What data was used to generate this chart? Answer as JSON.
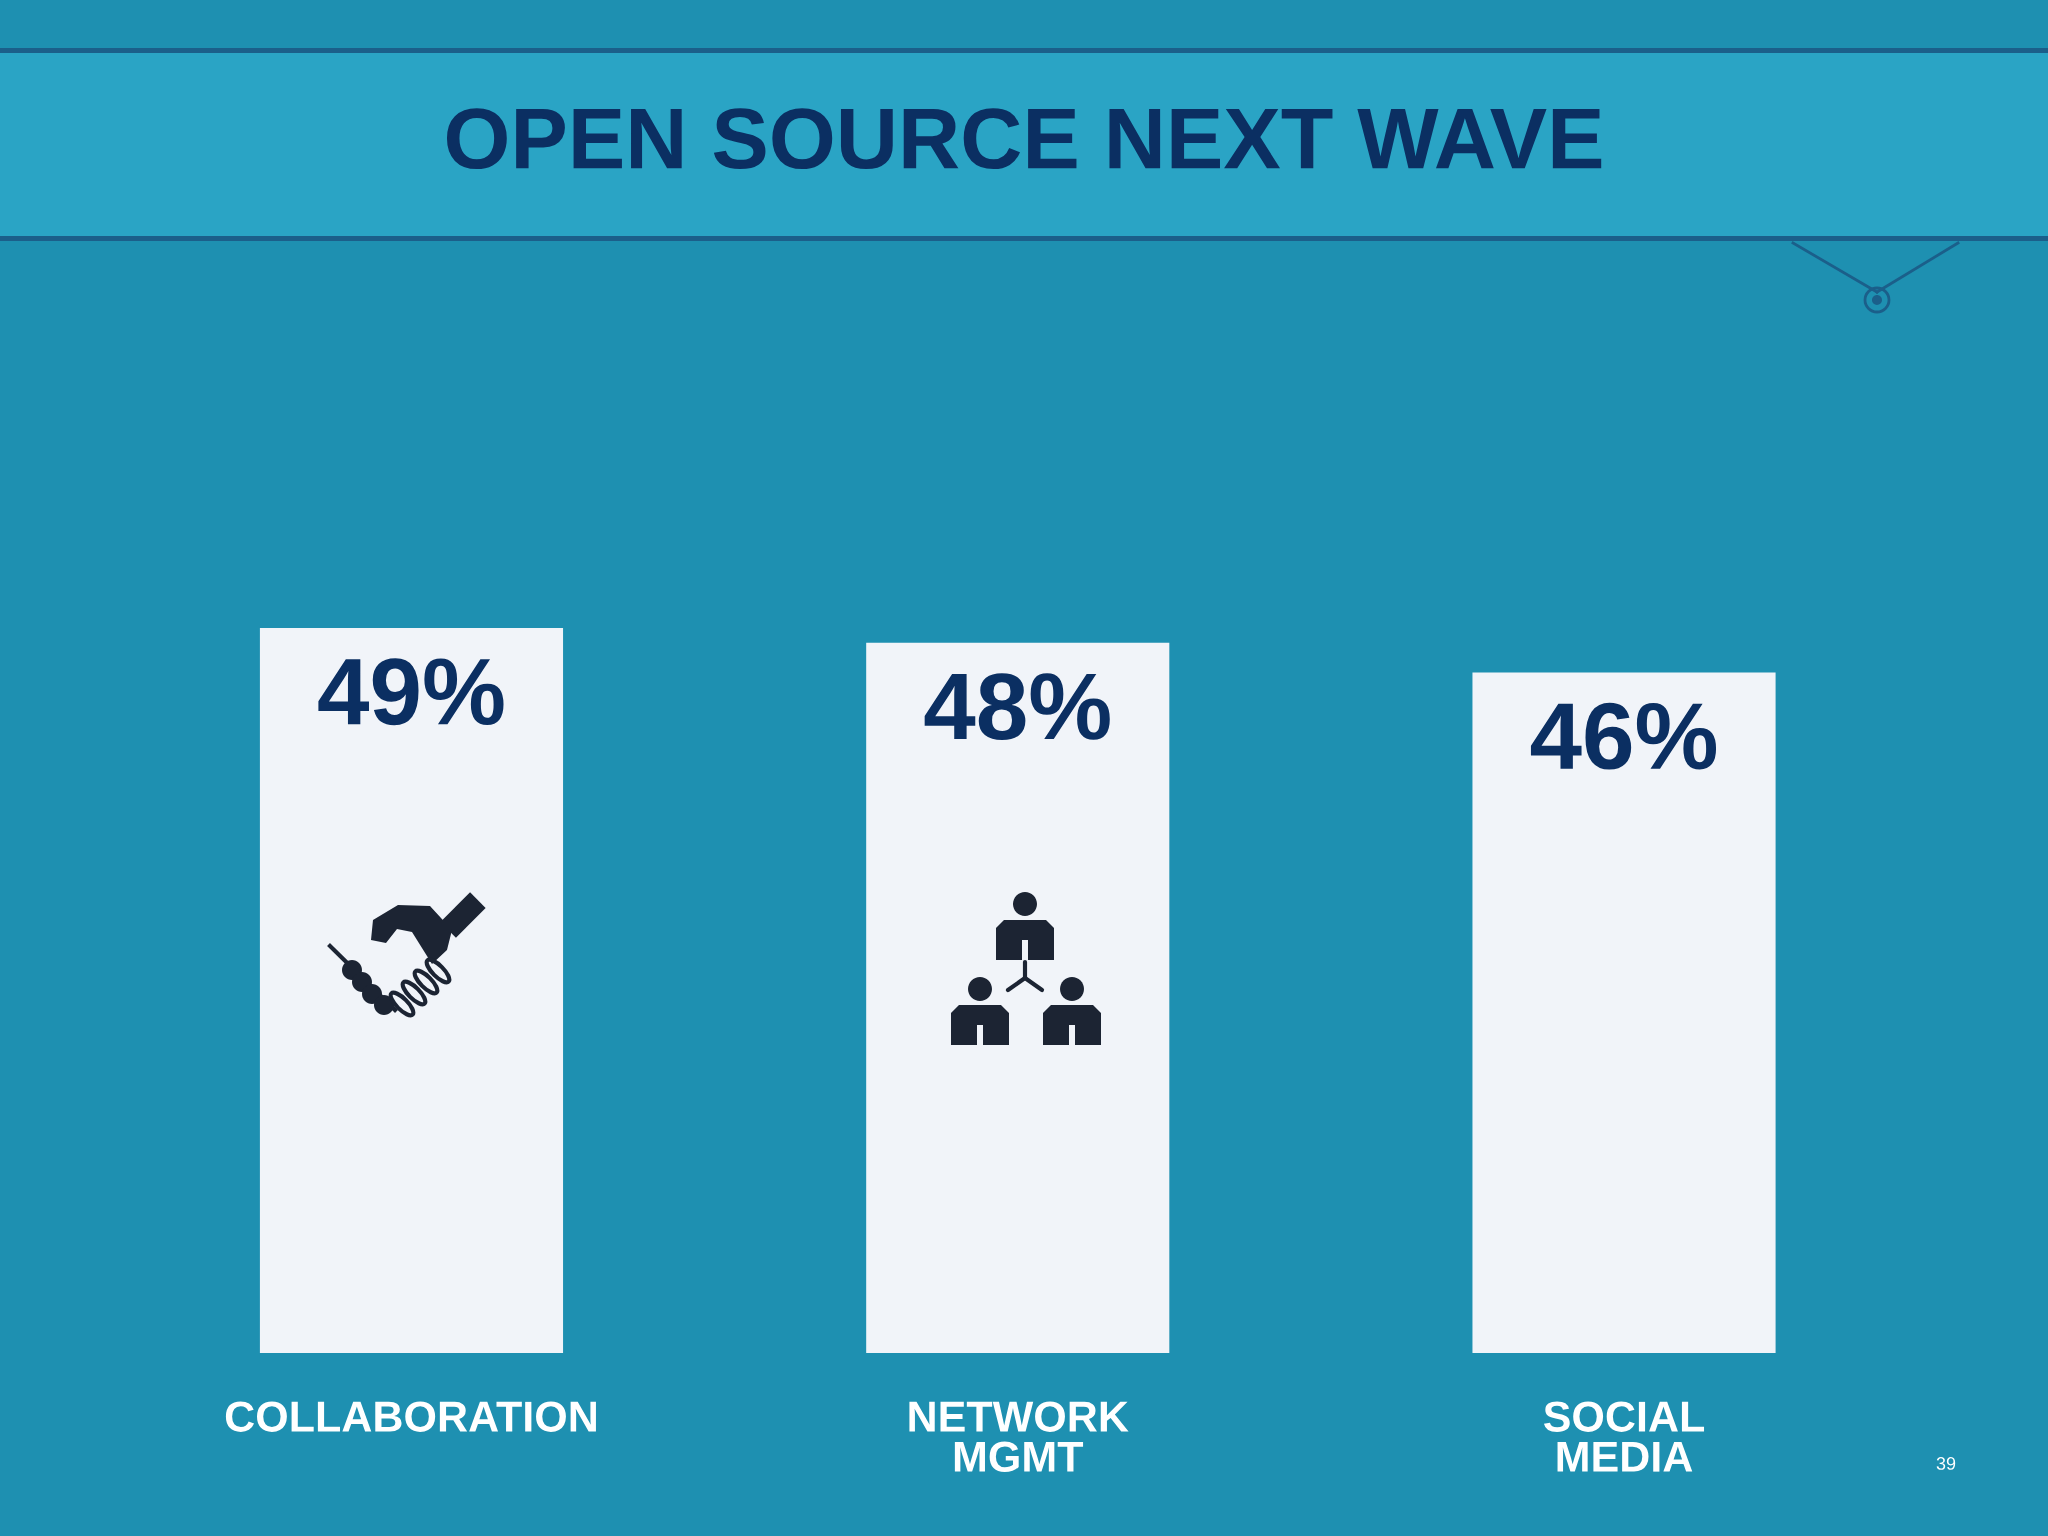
{
  "chart_data": {
    "type": "bar",
    "title": "OPEN SOURCE NEXT WAVE",
    "categories": [
      "COLLABORATION",
      "NETWORK\nMGMT",
      "SOCIAL\nMEDIA"
    ],
    "values": [
      49,
      48,
      46
    ],
    "value_labels": [
      "49%",
      "48%",
      "46%"
    ],
    "color": "#f1f4f9",
    "annotations": [
      "39"
    ]
  }
}
